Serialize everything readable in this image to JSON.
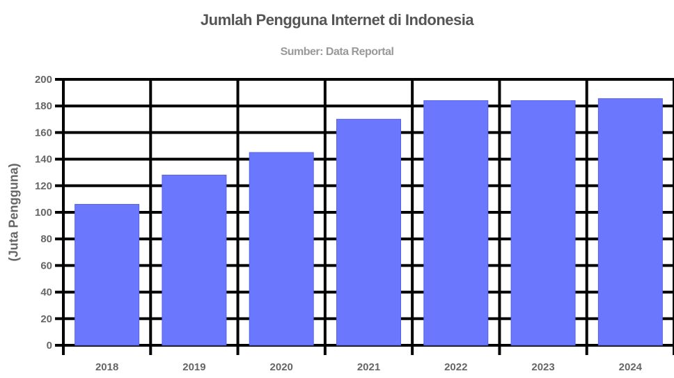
{
  "chart": {
    "title": "Jumlah Pengguna Internet di Indonesia",
    "subtitle": "Sumber: Data Reportal",
    "ylabel": "(Juta Pengguna)"
  },
  "chart_data": {
    "type": "bar",
    "title": "Jumlah Pengguna Internet di Indonesia",
    "subtitle": "Sumber: Data Reportal",
    "xlabel": "",
    "ylabel": "(Juta Pengguna)",
    "categories": [
      "2018",
      "2019",
      "2020",
      "2021",
      "2022",
      "2023",
      "2024"
    ],
    "values": [
      106,
      128,
      145,
      170,
      184,
      184,
      185.5
    ],
    "ylim": [
      0,
      200
    ],
    "yticks": [
      0,
      20,
      40,
      60,
      80,
      100,
      120,
      140,
      160,
      180,
      200
    ],
    "grid": true,
    "legend": null,
    "bar_color": "#6b78fd",
    "grid_color": "#000000"
  }
}
